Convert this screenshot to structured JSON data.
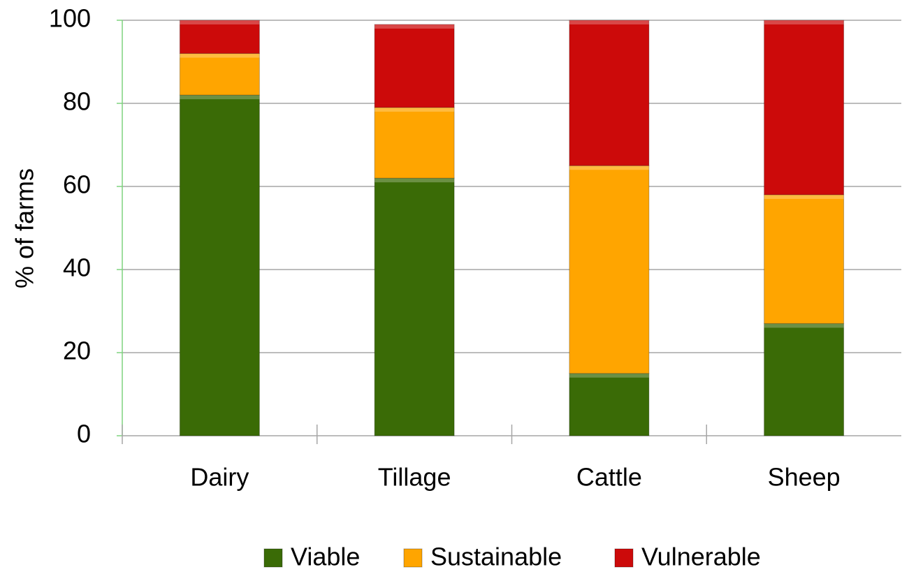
{
  "chart_data": {
    "type": "bar",
    "stacked": true,
    "ylabel": "% of farms",
    "categories": [
      "Dairy",
      "Tillage",
      "Cattle",
      "Sheep"
    ],
    "series": [
      {
        "name": "Viable",
        "color": "#3a6b06",
        "values": [
          82,
          62,
          15,
          27
        ]
      },
      {
        "name": "Sustainable",
        "color": "#ffa500",
        "values": [
          10,
          17,
          50,
          31
        ]
      },
      {
        "name": "Vulnerable",
        "color": "#cc0a0a",
        "values": [
          8,
          20,
          35,
          42
        ]
      }
    ],
    "ylim": [
      0,
      100
    ],
    "yticks": [
      0,
      20,
      40,
      60,
      80,
      100
    ],
    "grid": true,
    "legend": "bottom"
  }
}
